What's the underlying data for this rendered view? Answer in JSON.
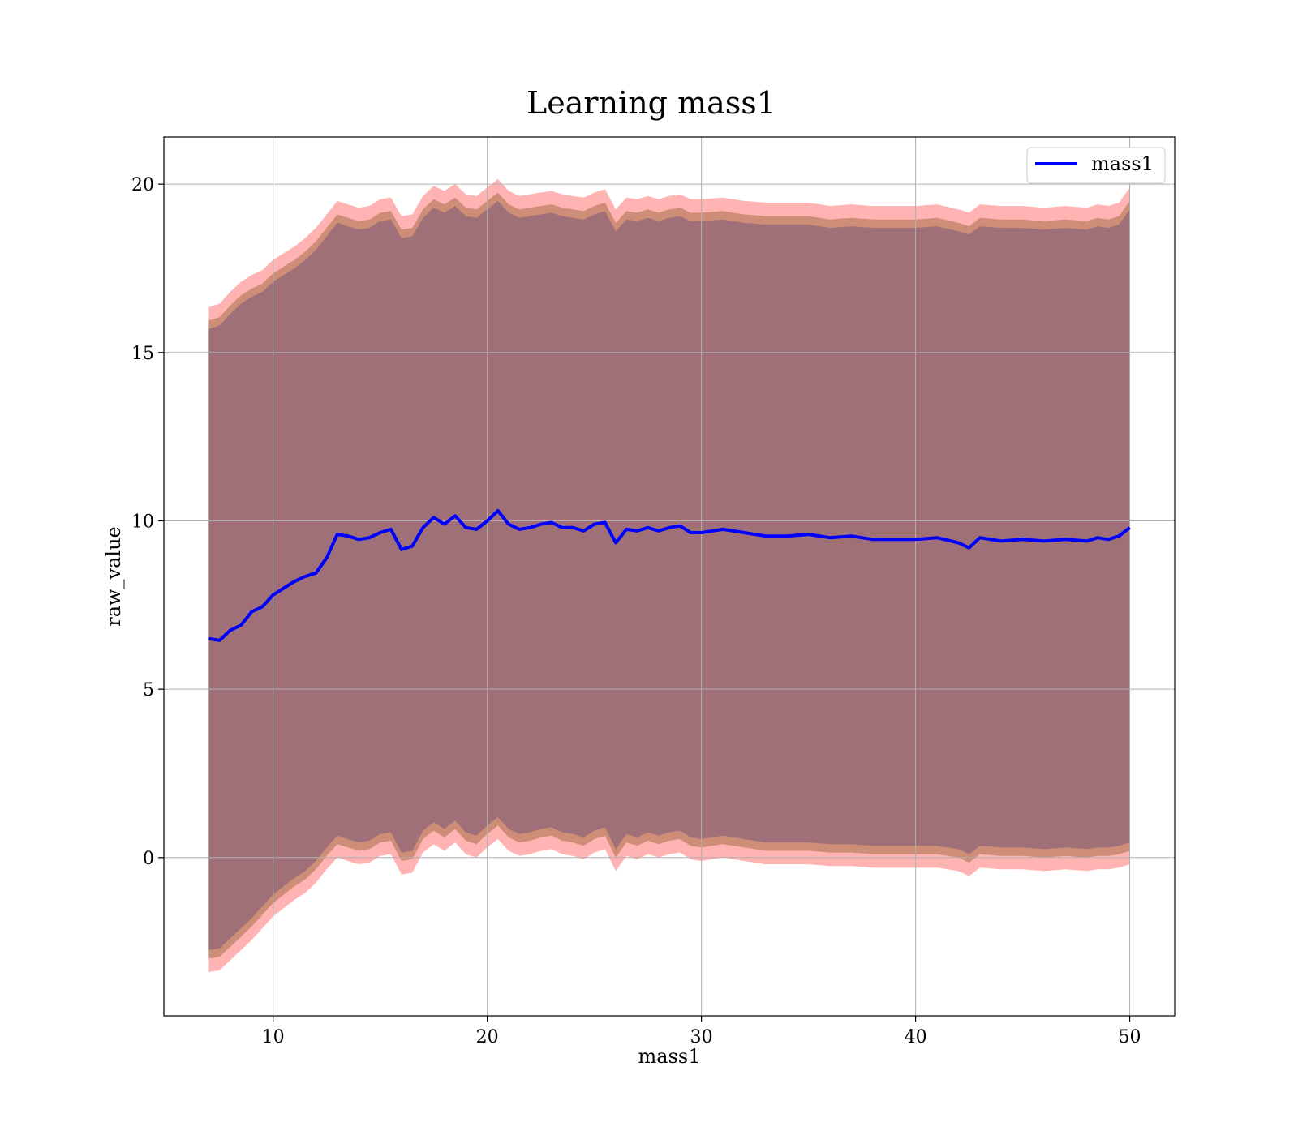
{
  "chart_data": {
    "type": "line",
    "title": "Learning mass1",
    "xlabel": "mass1",
    "ylabel": "raw_value",
    "xlim": [
      4.9,
      52.1
    ],
    "ylim": [
      -4.7,
      21.4
    ],
    "xticks": [
      10,
      20,
      30,
      40,
      50
    ],
    "yticks": [
      0,
      5,
      10,
      15,
      20
    ],
    "grid": true,
    "legend_position": "top-right",
    "colors": {
      "line": "#0000ff",
      "band_outer": "#ff9999",
      "band_middle": "#c88870",
      "band_inner": "#a07078",
      "grid": "#b0b0b0"
    },
    "series": [
      {
        "name": "mass1",
        "x": [
          7.0,
          7.5,
          8.0,
          8.5,
          9.0,
          9.5,
          10.0,
          10.5,
          11.0,
          11.5,
          12.0,
          12.5,
          13.0,
          13.5,
          14.0,
          14.5,
          15.0,
          15.5,
          16.0,
          16.5,
          17.0,
          17.5,
          18.0,
          18.5,
          19.0,
          19.5,
          20.0,
          20.5,
          21.0,
          21.5,
          22.0,
          22.5,
          23.0,
          23.5,
          24.0,
          24.5,
          25.0,
          25.5,
          26.0,
          26.5,
          27.0,
          27.5,
          28.0,
          28.5,
          29.0,
          29.5,
          30.0,
          31.0,
          32.0,
          33.0,
          34.0,
          35.0,
          36.0,
          37.0,
          38.0,
          39.0,
          40.0,
          41.0,
          42.0,
          42.5,
          43.0,
          44.0,
          45.0,
          46.0,
          47.0,
          48.0,
          48.5,
          49.0,
          49.5,
          50.0
        ],
        "y": [
          6.5,
          6.45,
          6.75,
          6.9,
          7.3,
          7.45,
          7.8,
          8.0,
          8.2,
          8.35,
          8.45,
          8.9,
          9.6,
          9.55,
          9.45,
          9.5,
          9.65,
          9.75,
          9.15,
          9.25,
          9.8,
          10.1,
          9.9,
          10.15,
          9.8,
          9.75,
          10.0,
          10.3,
          9.9,
          9.75,
          9.8,
          9.9,
          9.95,
          9.8,
          9.8,
          9.7,
          9.9,
          9.95,
          9.35,
          9.75,
          9.7,
          9.8,
          9.7,
          9.8,
          9.85,
          9.65,
          9.65,
          9.75,
          9.65,
          9.55,
          9.55,
          9.6,
          9.5,
          9.55,
          9.45,
          9.45,
          9.45,
          9.5,
          9.35,
          9.2,
          9.5,
          9.4,
          9.45,
          9.4,
          9.45,
          9.4,
          9.5,
          9.45,
          9.55,
          9.8
        ],
        "upper": [
          16.35,
          16.45,
          16.8,
          17.1,
          17.3,
          17.45,
          17.75,
          17.95,
          18.15,
          18.4,
          18.7,
          19.1,
          19.5,
          19.4,
          19.3,
          19.35,
          19.55,
          19.6,
          19.05,
          19.1,
          19.65,
          19.95,
          19.8,
          20.0,
          19.7,
          19.65,
          19.9,
          20.15,
          19.8,
          19.65,
          19.7,
          19.75,
          19.8,
          19.7,
          19.65,
          19.6,
          19.75,
          19.85,
          19.25,
          19.6,
          19.55,
          19.65,
          19.55,
          19.65,
          19.7,
          19.55,
          19.55,
          19.6,
          19.5,
          19.45,
          19.45,
          19.45,
          19.35,
          19.4,
          19.35,
          19.35,
          19.35,
          19.4,
          19.25,
          19.15,
          19.4,
          19.35,
          19.35,
          19.3,
          19.35,
          19.3,
          19.4,
          19.35,
          19.45,
          19.9
        ],
        "lower": [
          -3.4,
          -3.35,
          -3.05,
          -2.75,
          -2.45,
          -2.1,
          -1.75,
          -1.5,
          -1.25,
          -1.05,
          -0.75,
          -0.35,
          0.0,
          -0.1,
          -0.2,
          -0.15,
          0.05,
          0.1,
          -0.5,
          -0.45,
          0.15,
          0.4,
          0.2,
          0.45,
          0.1,
          0.0,
          0.3,
          0.55,
          0.2,
          0.05,
          0.1,
          0.2,
          0.25,
          0.1,
          0.05,
          -0.05,
          0.15,
          0.25,
          -0.4,
          0.05,
          -0.05,
          0.1,
          0.0,
          0.1,
          0.15,
          -0.05,
          -0.1,
          0.0,
          -0.1,
          -0.2,
          -0.2,
          -0.2,
          -0.25,
          -0.25,
          -0.3,
          -0.3,
          -0.3,
          -0.3,
          -0.4,
          -0.55,
          -0.3,
          -0.35,
          -0.35,
          -0.4,
          -0.35,
          -0.4,
          -0.35,
          -0.35,
          -0.3,
          -0.2
        ]
      }
    ]
  }
}
